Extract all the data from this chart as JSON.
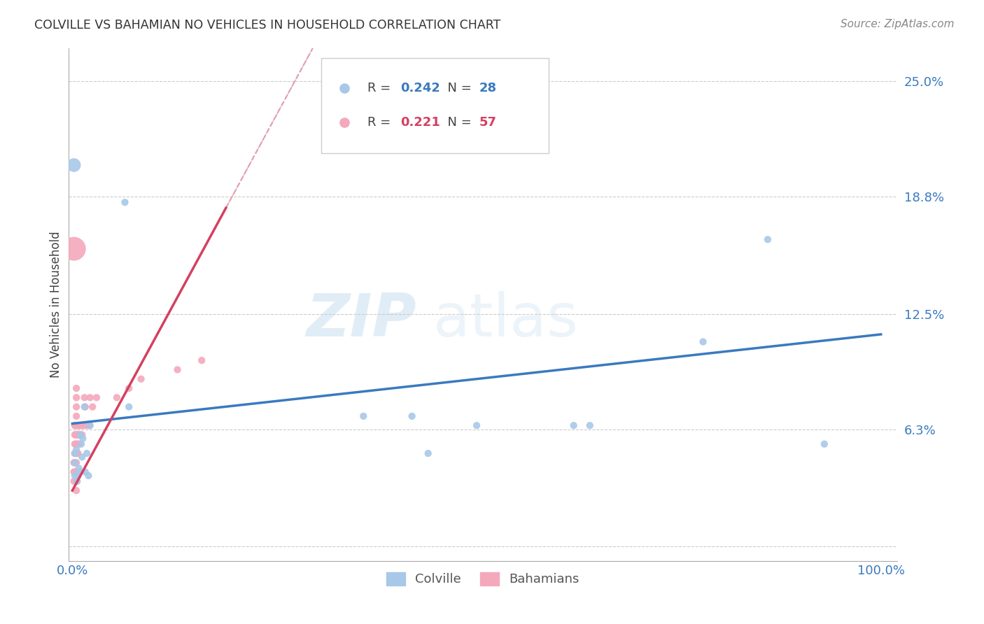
{
  "title": "COLVILLE VS BAHAMIAN NO VEHICLES IN HOUSEHOLD CORRELATION CHART",
  "source": "Source: ZipAtlas.com",
  "ylabel": "No Vehicles in Household",
  "colville_color": "#a8c8e8",
  "bahamian_color": "#f4a8bc",
  "colville_line_color": "#3a7abf",
  "bahamian_line_color": "#d44060",
  "diagonal_color": "#e0a0b0",
  "R_colville": "0.242",
  "N_colville": "28",
  "R_bahamian": "0.221",
  "N_bahamian": "57",
  "watermark_zip": "ZIP",
  "watermark_atlas": "atlas",
  "colville_x": [
    0.003,
    0.003,
    0.003,
    0.005,
    0.006,
    0.007,
    0.008,
    0.009,
    0.01,
    0.011,
    0.012,
    0.013,
    0.015,
    0.016,
    0.018,
    0.02,
    0.022,
    0.065,
    0.07,
    0.36,
    0.42,
    0.44,
    0.5,
    0.62,
    0.64,
    0.78,
    0.86,
    0.93
  ],
  "colville_y": [
    0.05,
    0.045,
    0.038,
    0.052,
    0.035,
    0.038,
    0.042,
    0.04,
    0.06,
    0.055,
    0.048,
    0.058,
    0.075,
    0.04,
    0.05,
    0.038,
    0.065,
    0.185,
    0.075,
    0.07,
    0.07,
    0.05,
    0.065,
    0.065,
    0.065,
    0.11,
    0.165,
    0.055
  ],
  "bahamian_x": [
    0.002,
    0.002,
    0.002,
    0.003,
    0.003,
    0.003,
    0.003,
    0.003,
    0.003,
    0.004,
    0.004,
    0.004,
    0.004,
    0.005,
    0.005,
    0.005,
    0.005,
    0.005,
    0.005,
    0.005,
    0.005,
    0.005,
    0.005,
    0.005,
    0.005,
    0.006,
    0.006,
    0.006,
    0.006,
    0.007,
    0.007,
    0.007,
    0.007,
    0.008,
    0.008,
    0.008,
    0.009,
    0.009,
    0.01,
    0.01,
    0.012,
    0.012,
    0.013,
    0.014,
    0.015,
    0.016,
    0.018,
    0.02,
    0.021,
    0.022,
    0.025,
    0.03,
    0.055,
    0.07,
    0.085,
    0.13,
    0.16
  ],
  "bahamian_y": [
    0.045,
    0.04,
    0.035,
    0.065,
    0.06,
    0.055,
    0.05,
    0.045,
    0.04,
    0.065,
    0.06,
    0.055,
    0.05,
    0.085,
    0.08,
    0.075,
    0.07,
    0.065,
    0.06,
    0.055,
    0.05,
    0.045,
    0.04,
    0.035,
    0.03,
    0.065,
    0.06,
    0.055,
    0.05,
    0.065,
    0.06,
    0.055,
    0.05,
    0.065,
    0.06,
    0.055,
    0.065,
    0.06,
    0.065,
    0.06,
    0.065,
    0.06,
    0.065,
    0.065,
    0.08,
    0.075,
    0.065,
    0.065,
    0.065,
    0.08,
    0.075,
    0.08,
    0.08,
    0.085,
    0.09,
    0.095,
    0.1
  ],
  "bahamian_large_x": [
    0.002
  ],
  "bahamian_large_y": [
    0.16
  ],
  "bahamian_large_size": 600,
  "colville_single_large_x": [
    0.002
  ],
  "colville_single_large_y": [
    0.205
  ],
  "colville_large_size": 200,
  "ytick_vals": [
    0.0,
    0.063,
    0.125,
    0.188,
    0.25
  ],
  "ytick_labels": [
    "",
    "6.3%",
    "12.5%",
    "18.8%",
    "25.0%"
  ],
  "xtick_vals": [
    0.0,
    1.0
  ],
  "xtick_labels": [
    "0.0%",
    "100.0%"
  ]
}
